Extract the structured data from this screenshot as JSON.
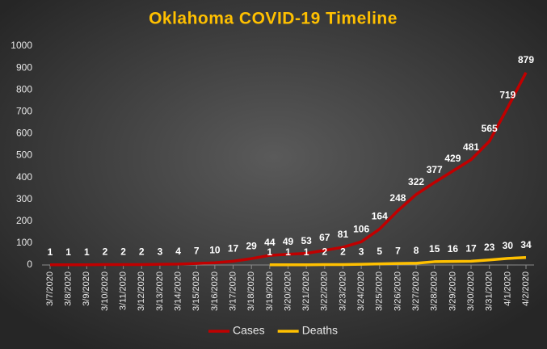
{
  "chart_data": {
    "type": "line",
    "title": "Oklahoma  COVID-19  Timeline",
    "categories": [
      "3/7/2020",
      "3/8/2020",
      "3/9/2020",
      "3/10/2020",
      "3/11/2020",
      "3/12/2020",
      "3/13/2020",
      "3/14/2020",
      "3/15/2020",
      "3/16/2020",
      "3/17/2020",
      "3/18/2020",
      "3/19/2020",
      "3/20/2020",
      "3/21/2020",
      "3/22/2020",
      "3/23/2020",
      "3/24/2020",
      "3/25/2020",
      "3/26/2020",
      "3/27/2020",
      "3/28/2020",
      "3/29/2020",
      "3/30/2020",
      "3/31/2020",
      "4/1/2020",
      "4/2/2020"
    ],
    "series": [
      {
        "name": "Cases",
        "color": "#c00000",
        "values": [
          1,
          1,
          1,
          2,
          2,
          2,
          3,
          4,
          7,
          10,
          17,
          29,
          44,
          49,
          53,
          67,
          81,
          106,
          164,
          248,
          322,
          377,
          429,
          481,
          565,
          719,
          879
        ]
      },
      {
        "name": "Deaths",
        "color": "#ffc000",
        "values": [
          null,
          null,
          null,
          null,
          null,
          null,
          null,
          null,
          null,
          null,
          null,
          null,
          1,
          1,
          1,
          2,
          2,
          3,
          5,
          7,
          8,
          15,
          16,
          17,
          23,
          30,
          34
        ]
      }
    ],
    "ylim": [
      0,
      1000
    ],
    "yticks": [
      0,
      100,
      200,
      300,
      400,
      500,
      600,
      700,
      800,
      900,
      1000
    ],
    "grid": false,
    "legend": "bottom"
  }
}
